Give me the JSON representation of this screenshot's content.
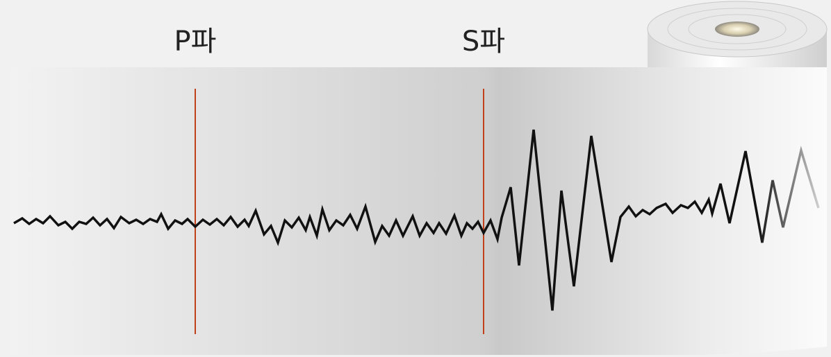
{
  "labels": {
    "p_wave": "P파",
    "s_wave": "S파"
  }
}
